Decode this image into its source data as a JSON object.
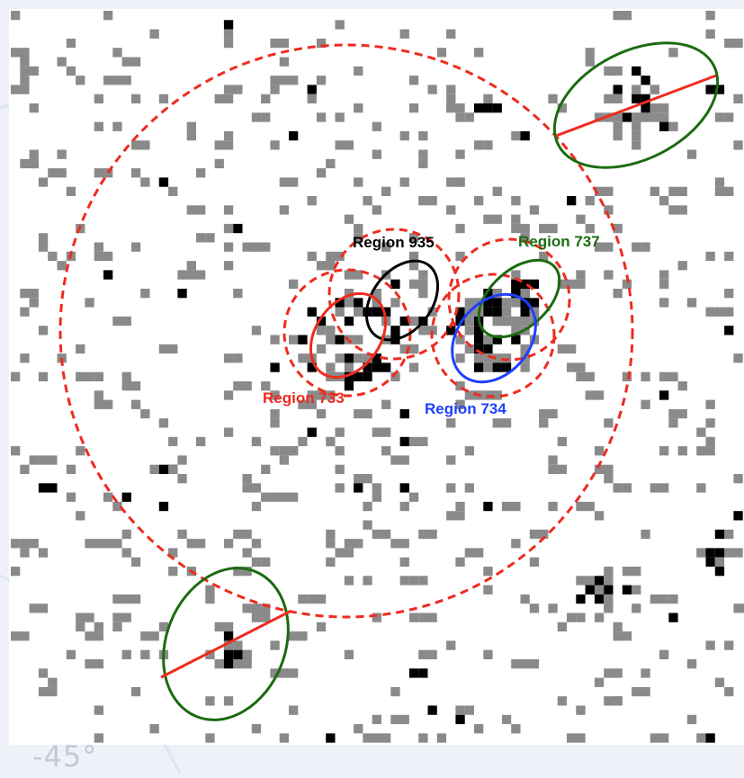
{
  "figure": {
    "coordinate_label": "-45°",
    "colors": {
      "background_outer": "#eef1f7",
      "panel": "#ffffff",
      "pixel_gray": "#8a8a8a",
      "pixel_black": "#000000",
      "dashed_red": "#ee2b1f",
      "solid_red": "#ee2b1f",
      "black": "#000000",
      "blue": "#1f3fff",
      "green": "#1b6b10"
    }
  },
  "regions": [
    {
      "id": "region-935",
      "label": "Region 935",
      "color": "#000000"
    },
    {
      "id": "region-737",
      "label": "Region 737",
      "color": "#1b6b10"
    },
    {
      "id": "region-733",
      "label": "Region 733",
      "color": "#ee2b1f"
    },
    {
      "id": "region-734",
      "label": "Region 734",
      "color": "#1f3fff"
    }
  ]
}
